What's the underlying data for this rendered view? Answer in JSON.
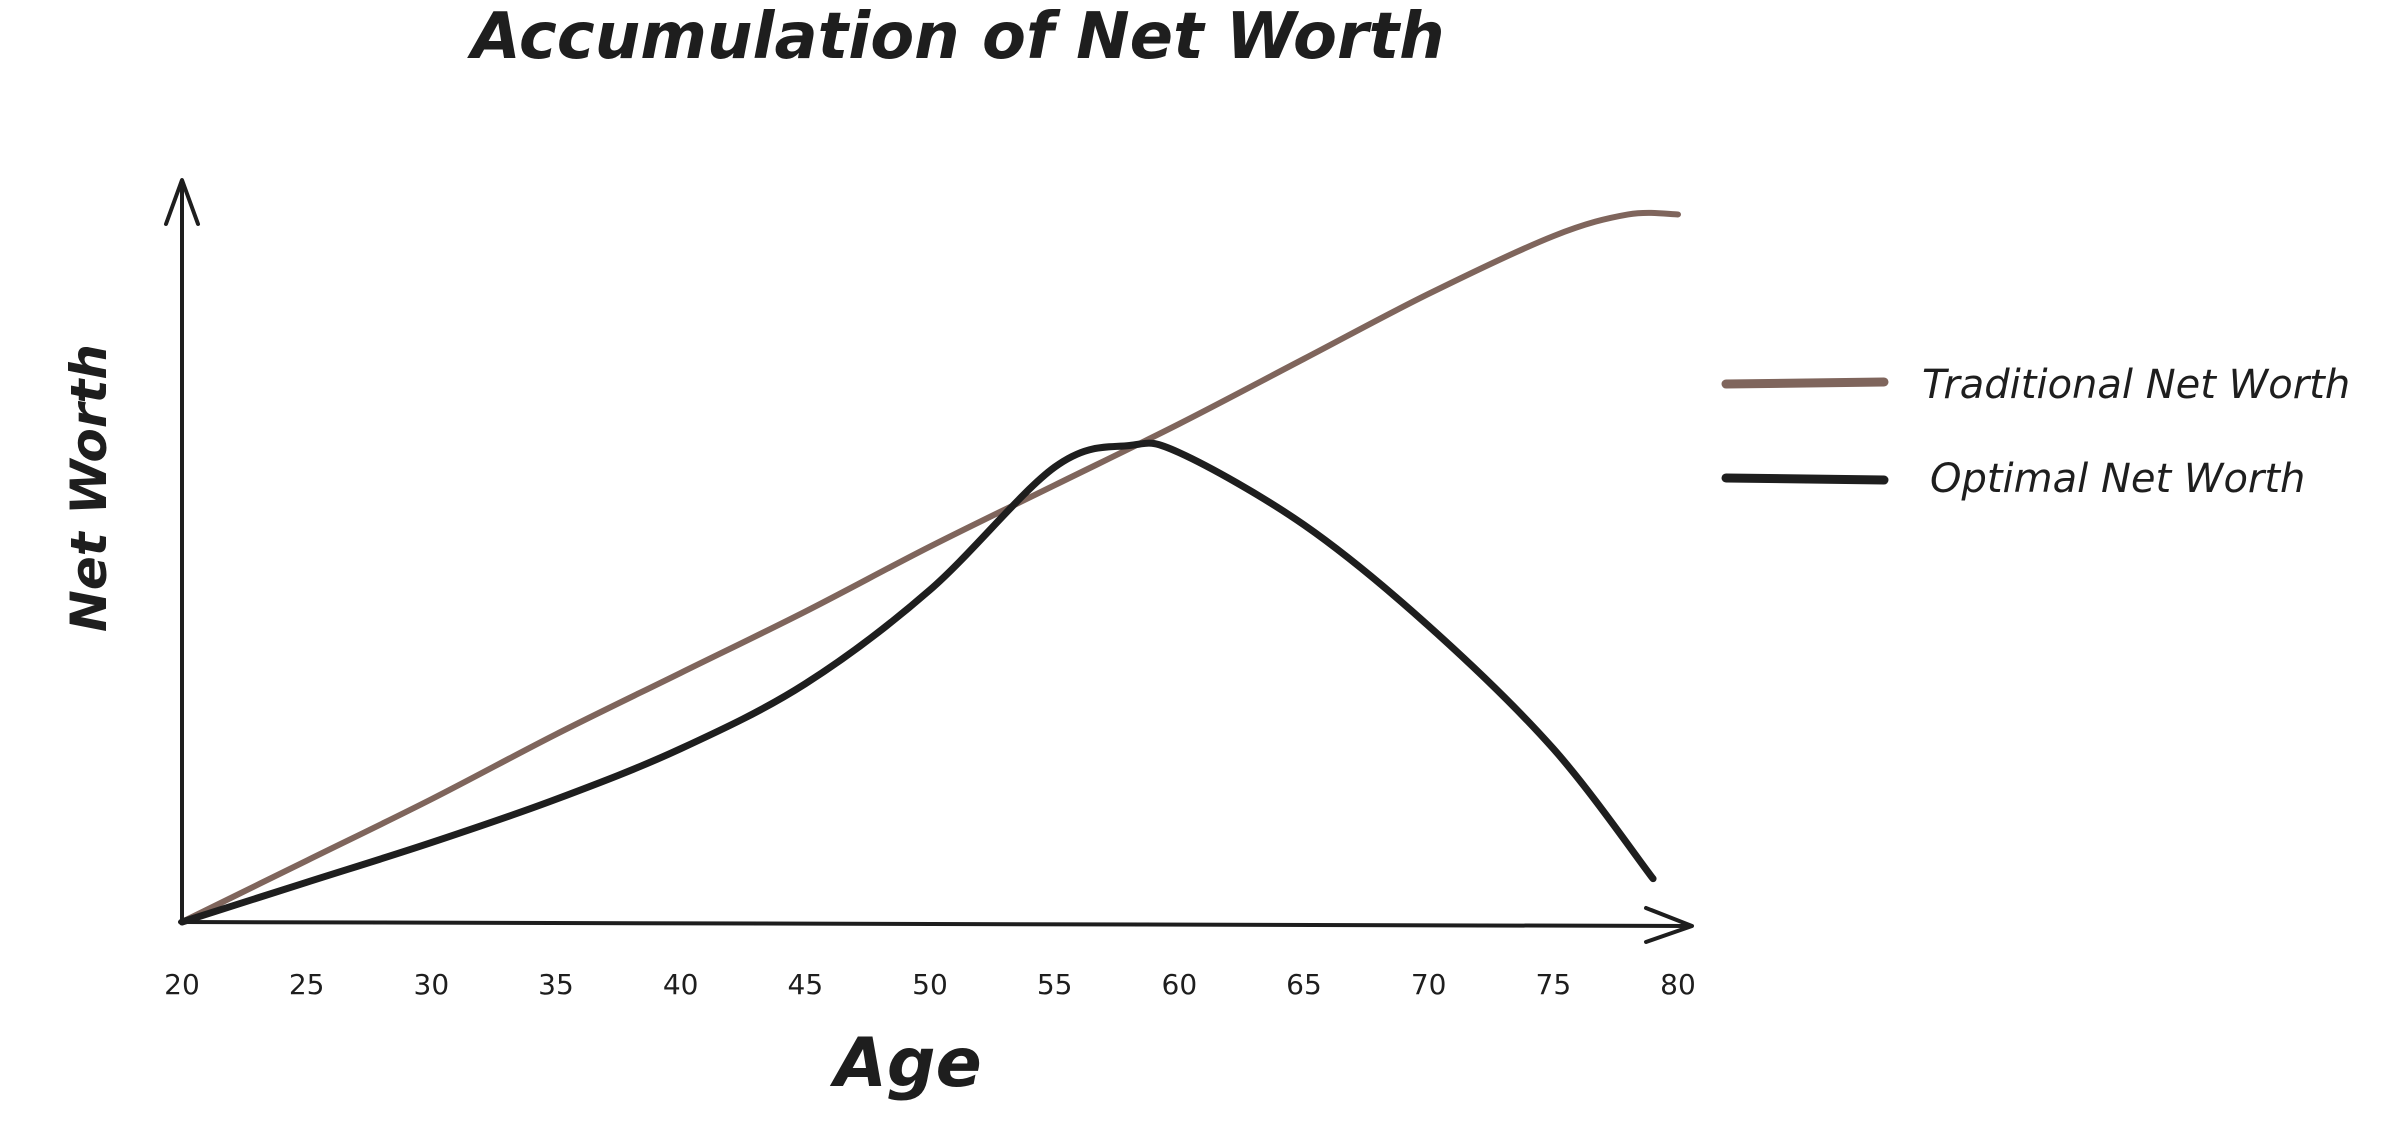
{
  "chart_data": {
    "type": "line",
    "title": "Accumulation of Net Worth",
    "xlabel": "Age",
    "ylabel": "Net Worth",
    "x": [
      20,
      25,
      30,
      35,
      40,
      45,
      50,
      55,
      60,
      65,
      70,
      75,
      80
    ],
    "xlim": [
      20,
      80
    ],
    "ylim": [
      0,
      100
    ],
    "y_ticks_shown": false,
    "grid": false,
    "legend_position": "right",
    "series": [
      {
        "name": "Traditional Net Worth",
        "color": "#7f655c",
        "x": [
          20,
          25,
          30,
          35,
          40,
          45,
          50,
          55,
          60,
          65,
          70,
          75,
          78,
          80
        ],
        "y": [
          0,
          8.5,
          17,
          26,
          34.5,
          43,
          52,
          60.5,
          69,
          78,
          87,
          95,
          98,
          98
        ]
      },
      {
        "name": "Optimal Net Worth",
        "color": "#1e1e1e",
        "x": [
          20,
          25,
          30,
          35,
          40,
          45,
          50,
          55,
          58,
          60,
          65,
          70,
          75,
          79
        ],
        "y": [
          0,
          5.5,
          11,
          17,
          24,
          33,
          46,
          63,
          66,
          65,
          55,
          41,
          24,
          6
        ]
      }
    ]
  }
}
